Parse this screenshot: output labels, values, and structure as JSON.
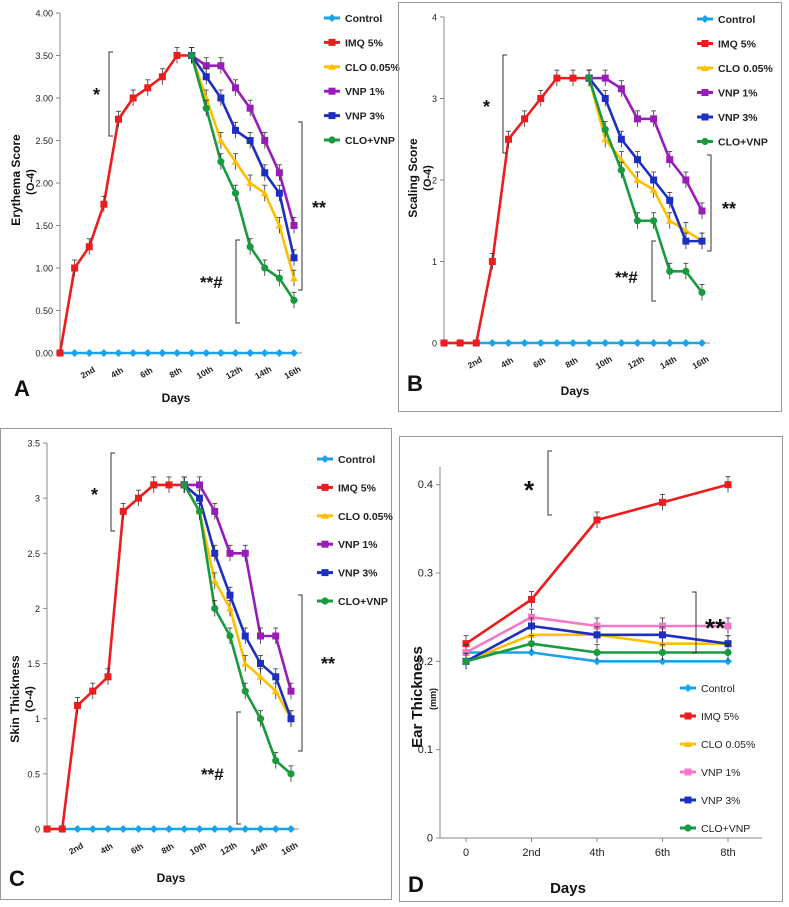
{
  "colors": {
    "Control": "#1aa3e8",
    "IMQ 5%": "#ee1c1c",
    "CLO 0.05%": "#ffbf00",
    "VNP 1%": "#9a1cb8",
    "VNP 3%": "#1c2fc2",
    "CLO+VNP": "#1a9a3e",
    "VNP 1% (D)": "#f47ac8",
    "VNP 3% (D)": "#2f3ec6"
  },
  "chart_data": [
    {
      "id": "A",
      "type": "line",
      "panel_label": "A",
      "xlabel": "Days",
      "ylabel": "Erythema Score",
      "ylabel_sub": "(O-4)",
      "ylim": [
        0,
        4
      ],
      "yticks": [
        "0.00",
        "0.50",
        "1.00",
        "1.50",
        "2.00",
        "2.50",
        "3.00",
        "3.50",
        "4.00"
      ],
      "ytick_values": [
        0,
        0.5,
        1,
        1.5,
        2,
        2.5,
        3,
        3.5,
        4
      ],
      "x": [
        1,
        2,
        3,
        4,
        5,
        6,
        7,
        8,
        9,
        10,
        11,
        12,
        13,
        14,
        15,
        16
      ],
      "xticks": [
        "2nd",
        "4th",
        "6th",
        "8th",
        "10th",
        "12th",
        "14th",
        "16th"
      ],
      "xtick_positions": [
        2,
        4,
        6,
        8,
        10,
        12,
        14,
        16
      ],
      "xlim": [
        0,
        16
      ],
      "annotations": [
        "*",
        "**",
        "**#"
      ],
      "series": [
        {
          "name": "Control",
          "x": [
            0,
            1,
            2,
            3,
            4,
            5,
            6,
            7,
            8,
            9,
            10,
            11,
            12,
            13,
            14,
            15,
            16
          ],
          "values": [
            0,
            0,
            0,
            0,
            0,
            0,
            0,
            0,
            0,
            0,
            0,
            0,
            0,
            0,
            0,
            0,
            0
          ]
        },
        {
          "name": "IMQ 5%",
          "x": [
            0,
            1,
            2,
            3,
            4,
            5,
            6,
            7,
            8,
            9
          ],
          "values": [
            0,
            1.0,
            1.25,
            1.75,
            2.75,
            3.0,
            3.12,
            3.25,
            3.5,
            3.5
          ]
        },
        {
          "name": "CLO 0.05%",
          "x": [
            9,
            10,
            11,
            12,
            13,
            14,
            15,
            16
          ],
          "values": [
            3.5,
            3.0,
            2.5,
            2.25,
            2.0,
            1.88,
            1.5,
            0.88
          ]
        },
        {
          "name": "VNP 1%",
          "x": [
            9,
            10,
            11,
            12,
            13,
            14,
            15,
            16
          ],
          "values": [
            3.5,
            3.38,
            3.38,
            3.12,
            2.88,
            2.5,
            2.12,
            1.5
          ]
        },
        {
          "name": "VNP 3%",
          "x": [
            9,
            10,
            11,
            12,
            13,
            14,
            15,
            16
          ],
          "values": [
            3.5,
            3.25,
            3.0,
            2.62,
            2.5,
            2.12,
            1.88,
            1.12
          ]
        },
        {
          "name": "CLO+VNP",
          "x": [
            9,
            10,
            11,
            12,
            13,
            14,
            15,
            16
          ],
          "values": [
            3.5,
            2.88,
            2.25,
            1.88,
            1.25,
            1.0,
            0.88,
            0.62
          ]
        }
      ],
      "legend": [
        "Control",
        "IMQ 5%",
        "CLO 0.05%",
        "VNP 1%",
        "VNP 3%",
        "CLO+VNP"
      ]
    },
    {
      "id": "B",
      "type": "line",
      "panel_label": "B",
      "xlabel": "Days",
      "ylabel": "Scaling Score",
      "ylabel_sub": "(O-4)",
      "ylim": [
        0,
        4
      ],
      "yticks": [
        "0",
        "1",
        "2",
        "3",
        "4"
      ],
      "ytick_values": [
        0,
        1,
        2,
        3,
        4
      ],
      "xticks": [
        "2nd",
        "4th",
        "6th",
        "8th",
        "10th",
        "12th",
        "14th",
        "16th"
      ],
      "xtick_positions": [
        2,
        4,
        6,
        8,
        10,
        12,
        14,
        16
      ],
      "xlim": [
        0,
        16
      ],
      "annotations": [
        "*",
        "**",
        "**#"
      ],
      "series": [
        {
          "name": "Control",
          "x": [
            0,
            1,
            2,
            3,
            4,
            5,
            6,
            7,
            8,
            9,
            10,
            11,
            12,
            13,
            14,
            15,
            16
          ],
          "values": [
            0,
            0,
            0,
            0,
            0,
            0,
            0,
            0,
            0,
            0,
            0,
            0,
            0,
            0,
            0,
            0,
            0
          ]
        },
        {
          "name": "IMQ 5%",
          "x": [
            0,
            1,
            2,
            3,
            4,
            5,
            6,
            7,
            8,
            9
          ],
          "values": [
            0,
            0,
            0,
            1.0,
            2.5,
            2.75,
            3.0,
            3.25,
            3.25,
            3.25
          ]
        },
        {
          "name": "CLO 0.05%",
          "x": [
            9,
            10,
            11,
            12,
            13,
            14,
            15,
            16
          ],
          "values": [
            3.25,
            2.5,
            2.25,
            2.0,
            1.88,
            1.5,
            1.38,
            1.25
          ]
        },
        {
          "name": "VNP 1%",
          "x": [
            9,
            10,
            11,
            12,
            13,
            14,
            15,
            16
          ],
          "values": [
            3.25,
            3.25,
            3.12,
            2.75,
            2.75,
            2.25,
            2.0,
            1.62
          ]
        },
        {
          "name": "VNP 3%",
          "x": [
            9,
            10,
            11,
            12,
            13,
            14,
            15,
            16
          ],
          "values": [
            3.25,
            3.0,
            2.5,
            2.25,
            2.0,
            1.75,
            1.25,
            1.25
          ]
        },
        {
          "name": "CLO+VNP",
          "x": [
            9,
            10,
            11,
            12,
            13,
            14,
            15,
            16
          ],
          "values": [
            3.25,
            2.62,
            2.12,
            1.5,
            1.5,
            0.88,
            0.88,
            0.62
          ]
        }
      ],
      "legend": [
        "Control",
        "IMQ 5%",
        "CLO 0.05%",
        "VNP 1%",
        "VNP 3%",
        "CLO+VNP"
      ]
    },
    {
      "id": "C",
      "type": "line",
      "panel_label": "C",
      "xlabel": "Days",
      "ylabel": "Skin Thickness",
      "ylabel_sub": "(O-4)",
      "ylim": [
        0,
        3.5
      ],
      "yticks": [
        "0",
        "0.5",
        "1",
        "1.5",
        "2",
        "2.5",
        "3",
        "3.5"
      ],
      "ytick_values": [
        0,
        0.5,
        1,
        1.5,
        2,
        2.5,
        3,
        3.5
      ],
      "xticks": [
        "2nd",
        "4th",
        "6th",
        "8th",
        "10th",
        "12th",
        "14th",
        "16th"
      ],
      "xtick_positions": [
        2,
        4,
        6,
        8,
        10,
        12,
        14,
        16
      ],
      "xlim": [
        0,
        16
      ],
      "annotations": [
        "*",
        "**",
        "**#"
      ],
      "series": [
        {
          "name": "Control",
          "x": [
            0,
            1,
            2,
            3,
            4,
            5,
            6,
            7,
            8,
            9,
            10,
            11,
            12,
            13,
            14,
            15,
            16
          ],
          "values": [
            0,
            0,
            0,
            0,
            0,
            0,
            0,
            0,
            0,
            0,
            0,
            0,
            0,
            0,
            0,
            0,
            0
          ]
        },
        {
          "name": "IMQ 5%",
          "x": [
            0,
            1,
            2,
            3,
            4,
            5,
            6,
            7,
            8,
            9
          ],
          "values": [
            0,
            0,
            1.12,
            1.25,
            1.38,
            2.88,
            3.0,
            3.12,
            3.12,
            3.12
          ]
        },
        {
          "name": "CLO 0.05%",
          "x": [
            9,
            10,
            11,
            12,
            13,
            14,
            15,
            16
          ],
          "values": [
            3.12,
            2.88,
            2.25,
            2.0,
            1.5,
            1.38,
            1.25,
            1.0
          ]
        },
        {
          "name": "VNP 1%",
          "x": [
            9,
            10,
            11,
            12,
            13,
            14,
            15,
            16
          ],
          "values": [
            3.12,
            3.12,
            2.88,
            2.5,
            2.5,
            1.75,
            1.75,
            1.25
          ]
        },
        {
          "name": "VNP 3%",
          "x": [
            9,
            10,
            11,
            12,
            13,
            14,
            15,
            16
          ],
          "values": [
            3.12,
            3.0,
            2.5,
            2.12,
            1.75,
            1.5,
            1.38,
            1.0
          ]
        },
        {
          "name": "CLO+VNP",
          "x": [
            9,
            10,
            11,
            12,
            13,
            14,
            15,
            16
          ],
          "values": [
            3.12,
            2.88,
            2.0,
            1.75,
            1.25,
            1.0,
            0.62,
            0.5
          ]
        }
      ],
      "legend": [
        "Control",
        "IMQ 5%",
        "CLO 0.05%",
        "VNP 1%",
        "VNP 3%",
        "CLO+VNP"
      ]
    },
    {
      "id": "D",
      "type": "line",
      "panel_label": "D",
      "xlabel": "Days",
      "ylabel": "Ear Thickness",
      "ylabel_sub": "(mm)",
      "ylim": [
        0,
        0.42
      ],
      "yticks": [
        "0",
        "0.1",
        "0.2",
        "0.3",
        "0.4"
      ],
      "ytick_values": [
        0,
        0.1,
        0.2,
        0.3,
        0.4
      ],
      "categories": [
        "0",
        "2nd",
        "4th",
        "6th",
        "8th"
      ],
      "annotations": [
        "*",
        "**"
      ],
      "series": [
        {
          "name": "Control",
          "values": [
            0.21,
            0.21,
            0.2,
            0.2,
            0.2
          ]
        },
        {
          "name": "IMQ 5%",
          "values": [
            0.22,
            0.27,
            0.36,
            0.38,
            0.4
          ]
        },
        {
          "name": "CLO 0.05%",
          "values": [
            0.2,
            0.23,
            0.23,
            0.22,
            0.22
          ]
        },
        {
          "name": "VNP 1%",
          "values": [
            0.21,
            0.25,
            0.24,
            0.24,
            0.24
          ]
        },
        {
          "name": "VNP 3%",
          "values": [
            0.2,
            0.24,
            0.23,
            0.23,
            0.22
          ]
        },
        {
          "name": "CLO+VNP",
          "values": [
            0.2,
            0.22,
            0.21,
            0.21,
            0.21
          ]
        }
      ],
      "legend": [
        "Control",
        "IMQ 5%",
        "CLO 0.05%",
        "VNP 1%",
        "VNP 3%",
        "CLO+VNP"
      ]
    }
  ]
}
